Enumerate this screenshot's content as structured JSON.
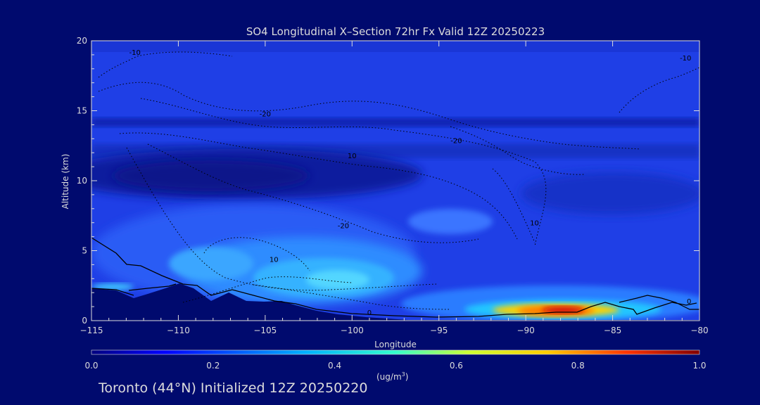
{
  "chart_data": {
    "type": "heatmap",
    "title": "SO4 Longitudinal X–Section 72hr  Fx Valid 12Z 20250223",
    "xlabel": "Longitude",
    "ylabel": "Altitude (km)",
    "xlim": [
      -115,
      -80
    ],
    "ylim": [
      0,
      20
    ],
    "x_ticks": [
      -115,
      -110,
      -105,
      -100,
      -95,
      -90,
      -85,
      -80
    ],
    "x_tick_labels": [
      "−115",
      "−110",
      "−105",
      "−100",
      "−95",
      "−90",
      "−85",
      "−80"
    ],
    "y_ticks": [
      0,
      5,
      10,
      15,
      20
    ],
    "colorbar": {
      "min": 0.0,
      "max": 1.0,
      "ticks": [
        0.0,
        0.2,
        0.4,
        0.6,
        0.8,
        1.0
      ],
      "tick_labels": [
        "0.0",
        "0.2",
        "0.4",
        "0.6",
        "0.8",
        "1.0"
      ],
      "units_label": "(ug/m",
      "units_sup": "3",
      "units_close": ")"
    },
    "contour_labels": [
      {
        "text": "-10",
        "lon": -112.5,
        "alt": 19.0
      },
      {
        "text": "-20",
        "lon": -105.0,
        "alt": 14.6
      },
      {
        "text": "-20",
        "lon": -94.0,
        "alt": 12.7
      },
      {
        "text": "10",
        "lon": -100.0,
        "alt": 11.6
      },
      {
        "text": "-20",
        "lon": -100.5,
        "alt": 6.6
      },
      {
        "text": "10",
        "lon": -89.5,
        "alt": 6.8
      },
      {
        "text": "10",
        "lon": -104.5,
        "alt": 4.2
      },
      {
        "text": "0",
        "lon": -99.0,
        "alt": 0.4
      },
      {
        "text": "-10",
        "lon": -80.8,
        "alt": 18.6
      },
      {
        "text": "0",
        "lon": -80.6,
        "alt": 1.2
      }
    ],
    "field_features": [
      {
        "feature": "mid-troposphere plume",
        "lon": -101,
        "alt": 3.4,
        "value": 0.32
      },
      {
        "feature": "western low-level plume",
        "lon": -108,
        "alt": 4.4,
        "value": 0.22
      },
      {
        "feature": "boundary-layer maximum",
        "lon": -88,
        "alt": 0.7,
        "value": 0.85
      },
      {
        "feature": "upper-level minimum",
        "lon": -107,
        "alt": 10.4,
        "value": 0.02
      }
    ]
  },
  "footer": "Toronto (44°N) Initialized 12Z 20250220",
  "colors": {
    "background": "#000a6e",
    "plot_base": "#1f3fe6",
    "axis": "#dcdcdc"
  }
}
